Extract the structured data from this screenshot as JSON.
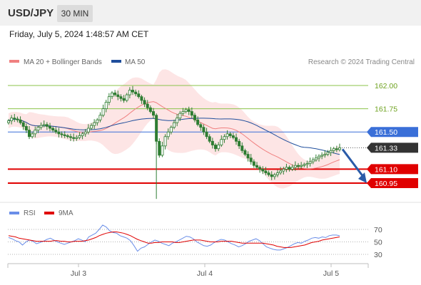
{
  "header": {
    "symbol": "USD/JPY",
    "timeframe": "30 MIN",
    "datetime": "Friday, July 5, 2024 1:48:57 AM CET"
  },
  "colors": {
    "candle": "#2e7d32",
    "ma20": "#f08080",
    "ma50": "#1f4e9c",
    "resistance": "#8bc34a",
    "support": "#e00000",
    "current": "#3a6fd8",
    "arrow": "#2a5ba8",
    "rsi": "#6a8ee8",
    "rsi_ma": "#e00000"
  },
  "chart_data": [
    {
      "type": "candlestick",
      "legend": [
        {
          "name": "MA 20 + Bollinger Bands",
          "color": "#f08080"
        },
        {
          "name": "MA 50",
          "color": "#1f4e9c"
        }
      ],
      "credit": "Research © 2024 Trading Central",
      "x_ticks": [
        "Jul 3",
        "Jul 4",
        "Jul 5"
      ],
      "ylim": [
        160.9,
        162.2
      ],
      "levels": [
        {
          "label": "162.00",
          "value": 162.0,
          "kind": "resistance"
        },
        {
          "label": "161.75",
          "value": 161.75,
          "kind": "resistance"
        },
        {
          "label": "161.50",
          "value": 161.5,
          "kind": "current"
        },
        {
          "label": "161.33",
          "value": 161.33,
          "kind": "last"
        },
        {
          "label": "161.10",
          "value": 161.1,
          "kind": "support"
        },
        {
          "label": "160.95",
          "value": 160.95,
          "kind": "support"
        }
      ],
      "forecast": {
        "from": 161.33,
        "to": 160.95,
        "direction": "down"
      },
      "close": [
        161.62,
        161.65,
        161.64,
        161.63,
        161.6,
        161.56,
        161.52,
        161.45,
        161.48,
        161.52,
        161.55,
        161.57,
        161.58,
        161.56,
        161.54,
        161.52,
        161.5,
        161.48,
        161.47,
        161.46,
        161.45,
        161.44,
        161.43,
        161.44,
        161.46,
        161.48,
        161.5,
        161.54,
        161.57,
        161.6,
        161.63,
        161.68,
        161.75,
        161.82,
        161.88,
        161.92,
        161.9,
        161.88,
        161.86,
        161.84,
        161.9,
        161.95,
        161.93,
        161.91,
        161.88,
        161.84,
        161.8,
        161.76,
        161.72,
        161.68,
        161.4,
        161.25,
        161.35,
        161.45,
        161.5,
        161.55,
        161.6,
        161.65,
        161.7,
        161.72,
        161.74,
        161.72,
        161.68,
        161.63,
        161.58,
        161.55,
        161.5,
        161.45,
        161.4,
        161.36,
        161.32,
        161.36,
        161.42,
        161.45,
        161.48,
        161.46,
        161.44,
        161.4,
        161.35,
        161.3,
        161.26,
        161.22,
        161.18,
        161.14,
        161.12,
        161.1,
        161.08,
        161.06,
        161.04,
        161.02,
        161.04,
        161.06,
        161.08,
        161.1,
        161.12,
        161.1,
        161.12,
        161.14,
        161.13,
        161.14,
        161.15,
        161.16,
        161.18,
        161.2,
        161.22,
        161.24,
        161.25,
        161.26,
        161.28,
        161.3,
        161.32,
        161.31,
        161.33
      ]
    },
    {
      "type": "line",
      "legend": [
        {
          "name": "RSI",
          "color": "#6a8ee8"
        },
        {
          "name": "9MA",
          "color": "#e00000"
        }
      ],
      "ylim": [
        20,
        80
      ],
      "y_ticks": [
        "70",
        "50",
        "30"
      ],
      "series": [
        {
          "name": "RSI",
          "values": [
            57,
            55,
            52,
            50,
            45,
            50,
            53,
            51,
            47,
            49,
            51,
            54,
            56,
            53,
            50,
            48,
            46,
            48,
            50,
            52,
            55,
            53,
            50,
            58,
            61,
            64,
            70,
            77,
            74,
            68,
            65,
            64,
            60,
            58,
            56,
            52,
            44,
            35,
            40,
            42,
            46,
            50,
            53,
            51,
            48,
            46,
            44,
            48,
            50,
            53,
            56,
            59,
            58,
            55,
            50,
            47,
            44,
            43,
            45,
            49,
            52,
            54,
            53,
            50,
            47,
            45,
            42,
            44,
            47,
            51,
            53,
            55,
            52,
            47,
            42,
            40,
            38,
            37,
            37,
            39,
            41,
            44,
            47,
            49,
            48,
            51,
            53,
            56,
            57,
            56,
            58,
            57,
            60,
            61,
            61,
            60
          ]
        },
        {
          "name": "9MA",
          "values": [
            60,
            59,
            58,
            56,
            55,
            54,
            53,
            52,
            51,
            51,
            51,
            51,
            51,
            52,
            52,
            51,
            51,
            50,
            50,
            51,
            51,
            51,
            52,
            53,
            55,
            57,
            60,
            62,
            64,
            65,
            66,
            66,
            65,
            64,
            62,
            60,
            57,
            54,
            52,
            50,
            48,
            48,
            49,
            49,
            50,
            50,
            50,
            50,
            49,
            49,
            50,
            51,
            52,
            53,
            53,
            53,
            52,
            51,
            50,
            50,
            50,
            51,
            51,
            51,
            51,
            50,
            49,
            48,
            48,
            48,
            48,
            48,
            48,
            48,
            47,
            46,
            45,
            43,
            42,
            41,
            41,
            41,
            42,
            43,
            44,
            45,
            47,
            49,
            50,
            51,
            53,
            54,
            55,
            56,
            57,
            58
          ]
        }
      ]
    }
  ]
}
